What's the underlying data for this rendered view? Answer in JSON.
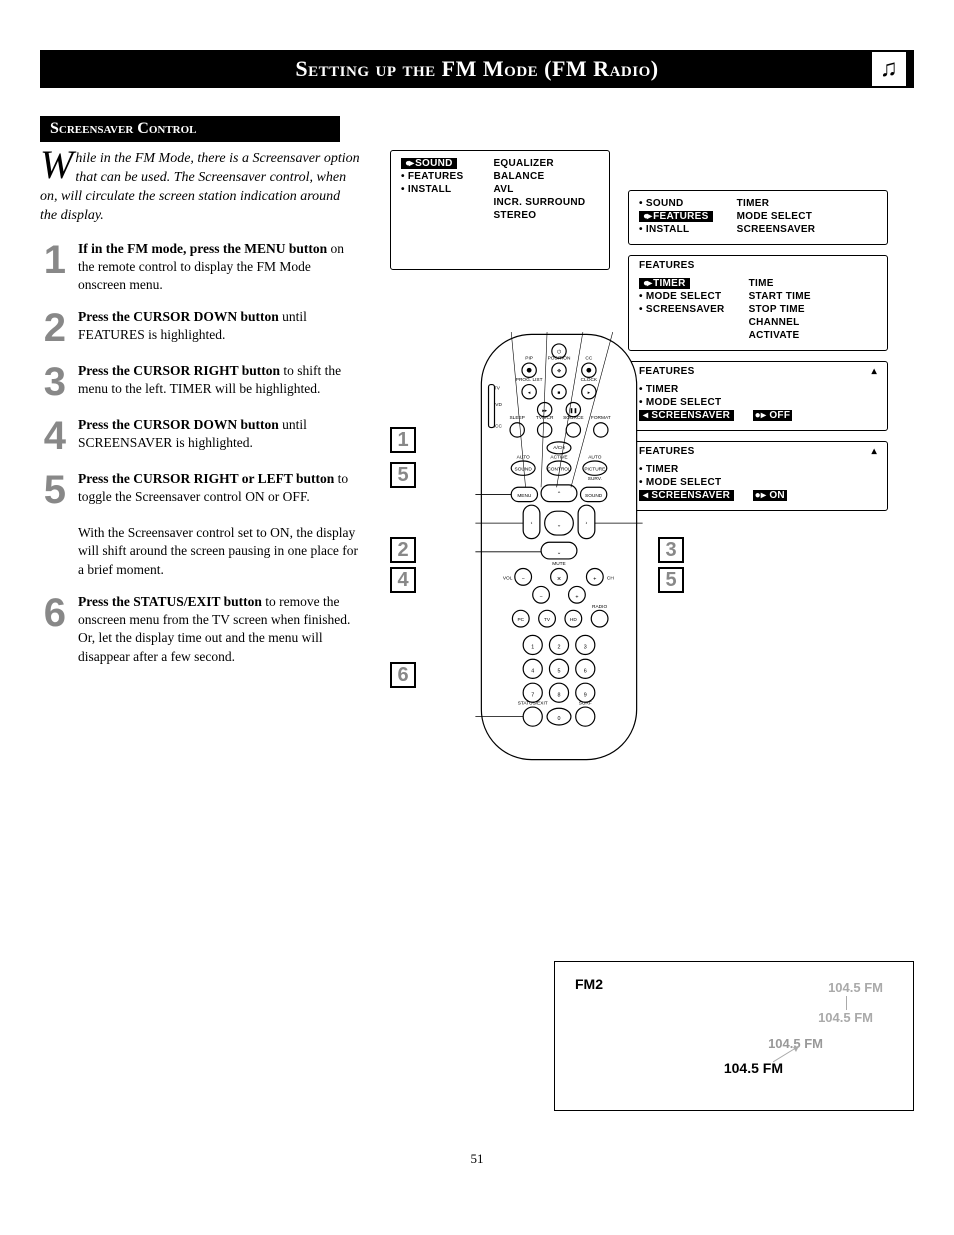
{
  "page": {
    "title": "Setting up the FM Mode (FM Radio)",
    "subtitle": "Screensaver Control",
    "page_number": "51"
  },
  "intro": {
    "dropcap": "W",
    "text": "hile in the FM Mode, there is a Screensaver option that can be used. The Screensaver control, when on, will circulate the screen station indication around the display."
  },
  "steps": [
    {
      "n": "1",
      "bold": "If in the FM mode, press the MENU button",
      "rest": " on the remote control to display the FM Mode onscreen menu."
    },
    {
      "n": "2",
      "bold": "Press the CURSOR DOWN button",
      "rest": " until FEATURES is highlighted."
    },
    {
      "n": "3",
      "bold": "Press the CURSOR RIGHT button",
      "rest": " to shift the menu to the left. TIMER will be highlighted."
    },
    {
      "n": "4",
      "bold": "Press the CURSOR DOWN button",
      "rest": " until SCREENSAVER is highlighted."
    },
    {
      "n": "5",
      "bold": "Press the CURSOR RIGHT or LEFT button",
      "rest": " to toggle the Screensaver control ON or OFF."
    },
    {
      "n": "",
      "bold": "",
      "rest": "With the Screensaver control set to ON, the display will shift around the screen pausing in one place for a brief moment."
    },
    {
      "n": "6",
      "bold": "Press the STATUS/EXIT button",
      "rest": " to remove the onscreen menu from the TV screen when finished. Or, let the display time out and the menu will disappear after a few second."
    }
  ],
  "menu_top_left": {
    "col1": [
      "SOUND",
      "FEATURES",
      "INSTALL"
    ],
    "col1_selected": 0,
    "col2": [
      "EQUALIZER",
      "BALANCE",
      "AVL",
      "INCR. SURROUND",
      "STEREO"
    ]
  },
  "menu_top_right": {
    "col1": [
      "SOUND",
      "FEATURES",
      "INSTALL"
    ],
    "col1_selected": 1,
    "col2": [
      "TIMER",
      "MODE SELECT",
      "SCREENSAVER"
    ]
  },
  "menu_features_timer": {
    "title": "FEATURES",
    "col1": [
      "TIMER",
      "MODE SELECT",
      "SCREENSAVER"
    ],
    "col1_selected": 0,
    "col2": [
      "TIME",
      "START TIME",
      "STOP TIME",
      "CHANNEL",
      "ACTIVATE"
    ]
  },
  "menu_features_off": {
    "title": "FEATURES",
    "col1": [
      "TIMER",
      "MODE SELECT",
      "SCREENSAVER"
    ],
    "col1_selected": 2,
    "value": "OFF",
    "arrow_up": "▴"
  },
  "menu_features_on": {
    "title": "FEATURES",
    "col1": [
      "TIMER",
      "MODE SELECT",
      "SCREENSAVER"
    ],
    "col1_selected": 2,
    "value": "ON",
    "arrow_up": "▴"
  },
  "callouts": {
    "left_top": "1",
    "left_mid1": "5",
    "left_mid2": "2",
    "left_mid3": "4",
    "left_bot": "6",
    "right_top": "3",
    "right_bot": "5"
  },
  "fm_display": {
    "label": "FM2",
    "freq": "104.5  FM"
  },
  "remote_labels": {
    "pip": "PIP",
    "position": "POSITION",
    "cc": "CC",
    "proglist": "PROG. LIST",
    "clock": "CLOCK",
    "tv": "TV",
    "dvd": "DVD",
    "acc": "ACC",
    "sleep": "SLEEP",
    "tvvcr": "TV/VCR",
    "source": "SOURCE",
    "format": "FORMAT",
    "av": "A/CH",
    "autosound": "AUTO\nSOUND",
    "activecontrol": "ACTIVE\nCONTROL",
    "autopicture": "AUTO\nPICTURE",
    "surv": "SURV.",
    "menu": "MENU",
    "sound": "SOUND",
    "vol": "VOL",
    "mute": "MUTE",
    "ch": "CH",
    "pc": "PC",
    "tvb": "TV",
    "hd": "HD",
    "radio": "RADIO",
    "statusexit": "STATUS/EXIT",
    "surf": "SURF"
  },
  "colors": {
    "num_gray": "#888888",
    "freq_fade": "#aaaaaa"
  }
}
